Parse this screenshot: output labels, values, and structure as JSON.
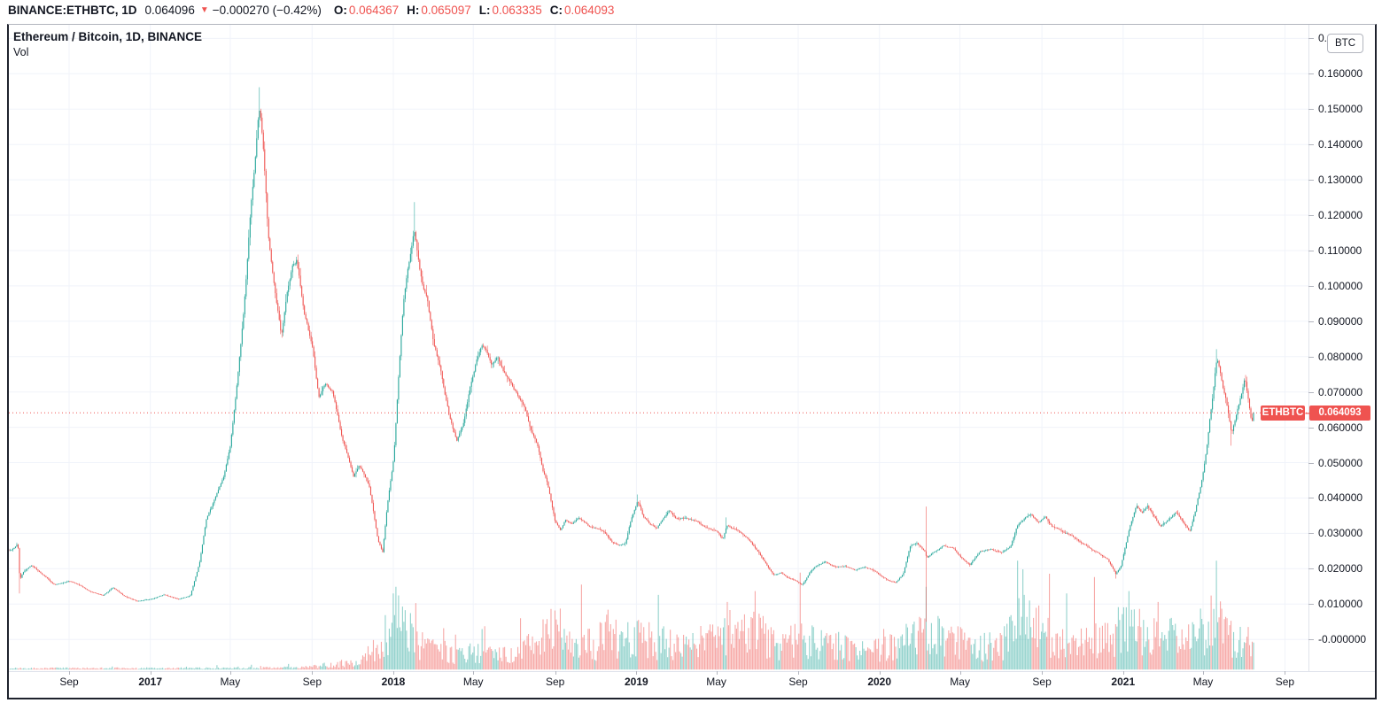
{
  "header": {
    "symbol": "BINANCE:ETHBTC, 1D",
    "last_price": "0.064096",
    "direction_icon": "▼",
    "change": "−0.000270 (−0.42%)",
    "ohlc": [
      {
        "label": "O:",
        "value": "0.064367"
      },
      {
        "label": "H:",
        "value": "0.065097"
      },
      {
        "label": "L:",
        "value": "0.063335"
      },
      {
        "label": "C:",
        "value": "0.064093"
      }
    ]
  },
  "legend": {
    "title": "Ethereum / Bitcoin, 1D, BINANCE",
    "indicator": "Vol"
  },
  "axes": {
    "currency_button": "BTC",
    "price_labels": [
      "0.170000",
      "0.160000",
      "0.150000",
      "0.140000",
      "0.130000",
      "0.120000",
      "0.110000",
      "0.100000",
      "0.090000",
      "0.080000",
      "0.070000",
      "0.060000",
      "0.050000",
      "0.040000",
      "0.030000",
      "0.020000",
      "0.010000",
      "-0.000000"
    ],
    "price_top_value": 0.17,
    "price_step": 0.01,
    "time_labels": [
      {
        "label": "Sep",
        "date": "2016-09-01",
        "bold": false
      },
      {
        "label": "2017",
        "date": "2017-01-01",
        "bold": true
      },
      {
        "label": "May",
        "date": "2017-05-01",
        "bold": false
      },
      {
        "label": "Sep",
        "date": "2017-09-01",
        "bold": false
      },
      {
        "label": "2018",
        "date": "2018-01-01",
        "bold": true
      },
      {
        "label": "May",
        "date": "2018-05-01",
        "bold": false
      },
      {
        "label": "Sep",
        "date": "2018-09-01",
        "bold": false
      },
      {
        "label": "2019",
        "date": "2019-01-01",
        "bold": true
      },
      {
        "label": "May",
        "date": "2019-05-01",
        "bold": false
      },
      {
        "label": "Sep",
        "date": "2019-09-01",
        "bold": false
      },
      {
        "label": "2020",
        "date": "2020-01-01",
        "bold": true
      },
      {
        "label": "May",
        "date": "2020-05-01",
        "bold": false
      },
      {
        "label": "Sep",
        "date": "2020-09-01",
        "bold": false
      },
      {
        "label": "2021",
        "date": "2021-01-01",
        "bold": true
      },
      {
        "label": "May",
        "date": "2021-05-01",
        "bold": false
      },
      {
        "label": "Sep",
        "date": "2021-09-01",
        "bold": false
      }
    ]
  },
  "price_line": {
    "symbol_badge": "ETHBTC",
    "dash": "–",
    "value_label": "0.064093",
    "value": 0.064093
  },
  "colors": {
    "up": "#26a69a",
    "down": "#ef5350",
    "vol_up": "rgba(38,166,154,0.5)",
    "vol_down": "rgba(239,83,80,0.5)",
    "accent_red": "#ef5350",
    "grid": "#f0f3fa",
    "text": "#131722"
  },
  "chart_data": {
    "type": "candlestick",
    "title": "Ethereum / Bitcoin, 1D, BINANCE",
    "symbol": "BINANCE:ETHBTC",
    "interval": "1D",
    "last_close": 0.064093,
    "y_axis_range": [
      -0.009,
      0.181
    ],
    "grid": true,
    "price_anchors": [
      [
        "2016-06-03",
        0.025
      ],
      [
        "2016-06-12",
        0.0258
      ],
      [
        "2016-06-16",
        0.0272
      ],
      [
        "2016-06-19",
        0.0168
      ],
      [
        "2016-06-24",
        0.019
      ],
      [
        "2016-07-06",
        0.021
      ],
      [
        "2016-07-26",
        0.0181
      ],
      [
        "2016-08-10",
        0.0156
      ],
      [
        "2016-09-01",
        0.0165
      ],
      [
        "2016-09-18",
        0.0152
      ],
      [
        "2016-10-06",
        0.0133
      ],
      [
        "2016-10-22",
        0.0124
      ],
      [
        "2016-11-06",
        0.0146
      ],
      [
        "2016-11-22",
        0.0125
      ],
      [
        "2016-12-12",
        0.0109
      ],
      [
        "2017-01-01",
        0.0114
      ],
      [
        "2017-01-22",
        0.0126
      ],
      [
        "2017-02-12",
        0.0114
      ],
      [
        "2017-03-02",
        0.0124
      ],
      [
        "2017-03-16",
        0.022
      ],
      [
        "2017-03-26",
        0.034
      ],
      [
        "2017-04-06",
        0.0385
      ],
      [
        "2017-04-21",
        0.046
      ],
      [
        "2017-05-01",
        0.055
      ],
      [
        "2017-05-10",
        0.07
      ],
      [
        "2017-05-20",
        0.09
      ],
      [
        "2017-05-26",
        0.105
      ],
      [
        "2017-06-01",
        0.122
      ],
      [
        "2017-06-07",
        0.135
      ],
      [
        "2017-06-13",
        0.15
      ],
      [
        "2017-06-16",
        0.147
      ],
      [
        "2017-06-21",
        0.134
      ],
      [
        "2017-06-27",
        0.114
      ],
      [
        "2017-07-03",
        0.105
      ],
      [
        "2017-07-09",
        0.097
      ],
      [
        "2017-07-17",
        0.086
      ],
      [
        "2017-07-26",
        0.0985
      ],
      [
        "2017-08-02",
        0.105
      ],
      [
        "2017-08-09",
        0.107
      ],
      [
        "2017-08-21",
        0.092
      ],
      [
        "2017-09-02",
        0.082
      ],
      [
        "2017-09-11",
        0.069
      ],
      [
        "2017-09-21",
        0.073
      ],
      [
        "2017-10-02",
        0.071
      ],
      [
        "2017-10-16",
        0.057
      ],
      [
        "2017-11-02",
        0.0462
      ],
      [
        "2017-11-11",
        0.0492
      ],
      [
        "2017-11-26",
        0.043
      ],
      [
        "2017-12-09",
        0.028
      ],
      [
        "2017-12-16",
        0.0246
      ],
      [
        "2017-12-23",
        0.038
      ],
      [
        "2018-01-02",
        0.052
      ],
      [
        "2018-01-10",
        0.078
      ],
      [
        "2018-01-16",
        0.095
      ],
      [
        "2018-01-22",
        0.105
      ],
      [
        "2018-01-29",
        0.112
      ],
      [
        "2018-02-01",
        0.117
      ],
      [
        "2018-02-07",
        0.108
      ],
      [
        "2018-02-13",
        0.101
      ],
      [
        "2018-02-21",
        0.096
      ],
      [
        "2018-03-02",
        0.084
      ],
      [
        "2018-03-11",
        0.078
      ],
      [
        "2018-03-19",
        0.07
      ],
      [
        "2018-03-26",
        0.063
      ],
      [
        "2018-04-06",
        0.056
      ],
      [
        "2018-04-16",
        0.06
      ],
      [
        "2018-04-25",
        0.07
      ],
      [
        "2018-05-04",
        0.078
      ],
      [
        "2018-05-14",
        0.084
      ],
      [
        "2018-05-21",
        0.082
      ],
      [
        "2018-05-29",
        0.078
      ],
      [
        "2018-06-06",
        0.08
      ],
      [
        "2018-06-16",
        0.076
      ],
      [
        "2018-06-26",
        0.073
      ],
      [
        "2018-07-06",
        0.07
      ],
      [
        "2018-07-16",
        0.066
      ],
      [
        "2018-07-26",
        0.06
      ],
      [
        "2018-08-06",
        0.055
      ],
      [
        "2018-08-14",
        0.048
      ],
      [
        "2018-08-21",
        0.044
      ],
      [
        "2018-09-01",
        0.0335
      ],
      [
        "2018-09-09",
        0.031
      ],
      [
        "2018-09-16",
        0.034
      ],
      [
        "2018-09-26",
        0.033
      ],
      [
        "2018-10-06",
        0.0345
      ],
      [
        "2018-10-21",
        0.032
      ],
      [
        "2018-11-02",
        0.0315
      ],
      [
        "2018-11-16",
        0.03
      ],
      [
        "2018-11-26",
        0.0275
      ],
      [
        "2018-12-06",
        0.0265
      ],
      [
        "2018-12-16",
        0.027
      ],
      [
        "2018-12-22",
        0.032
      ],
      [
        "2019-01-03",
        0.0392
      ],
      [
        "2019-01-11",
        0.035
      ],
      [
        "2019-01-21",
        0.0325
      ],
      [
        "2019-02-01",
        0.0315
      ],
      [
        "2019-02-09",
        0.034
      ],
      [
        "2019-02-19",
        0.0365
      ],
      [
        "2019-03-01",
        0.0345
      ],
      [
        "2019-03-16",
        0.0345
      ],
      [
        "2019-04-02",
        0.0335
      ],
      [
        "2019-04-16",
        0.0315
      ],
      [
        "2019-05-01",
        0.0305
      ],
      [
        "2019-05-11",
        0.0282
      ],
      [
        "2019-05-17",
        0.032
      ],
      [
        "2019-05-26",
        0.0315
      ],
      [
        "2019-06-06",
        0.0305
      ],
      [
        "2019-06-16",
        0.029
      ],
      [
        "2019-06-26",
        0.0265
      ],
      [
        "2019-07-06",
        0.024
      ],
      [
        "2019-07-16",
        0.021
      ],
      [
        "2019-07-26",
        0.0186
      ],
      [
        "2019-08-06",
        0.019
      ],
      [
        "2019-08-16",
        0.0175
      ],
      [
        "2019-08-29",
        0.0165
      ],
      [
        "2019-09-07",
        0.0152
      ],
      [
        "2019-09-17",
        0.0185
      ],
      [
        "2019-09-26",
        0.0205
      ],
      [
        "2019-10-11",
        0.022
      ],
      [
        "2019-10-26",
        0.0205
      ],
      [
        "2019-11-11",
        0.0205
      ],
      [
        "2019-11-26",
        0.0195
      ],
      [
        "2019-12-11",
        0.0205
      ],
      [
        "2019-12-26",
        0.0195
      ],
      [
        "2020-01-01",
        0.0185
      ],
      [
        "2020-01-16",
        0.0165
      ],
      [
        "2020-01-26",
        0.016
      ],
      [
        "2020-02-06",
        0.0185
      ],
      [
        "2020-02-16",
        0.0265
      ],
      [
        "2020-02-26",
        0.0275
      ],
      [
        "2020-03-09",
        0.025
      ],
      [
        "2020-03-12",
        0.023
      ],
      [
        "2020-03-21",
        0.0245
      ],
      [
        "2020-04-06",
        0.0265
      ],
      [
        "2020-04-21",
        0.0255
      ],
      [
        "2020-05-01",
        0.0235
      ],
      [
        "2020-05-16",
        0.021
      ],
      [
        "2020-05-31",
        0.025
      ],
      [
        "2020-06-16",
        0.0255
      ],
      [
        "2020-07-02",
        0.0245
      ],
      [
        "2020-07-16",
        0.026
      ],
      [
        "2020-07-26",
        0.032
      ],
      [
        "2020-08-06",
        0.034
      ],
      [
        "2020-08-16",
        0.0355
      ],
      [
        "2020-08-26",
        0.033
      ],
      [
        "2020-09-06",
        0.0345
      ],
      [
        "2020-09-16",
        0.032
      ],
      [
        "2020-10-02",
        0.0305
      ],
      [
        "2020-10-16",
        0.0295
      ],
      [
        "2020-11-02",
        0.027
      ],
      [
        "2020-11-16",
        0.0255
      ],
      [
        "2020-11-26",
        0.0245
      ],
      [
        "2020-12-09",
        0.0225
      ],
      [
        "2020-12-21",
        0.0185
      ],
      [
        "2020-12-29",
        0.021
      ],
      [
        "2021-01-05",
        0.027
      ],
      [
        "2021-01-11",
        0.032
      ],
      [
        "2021-01-21",
        0.038
      ],
      [
        "2021-01-29",
        0.036
      ],
      [
        "2021-02-06",
        0.038
      ],
      [
        "2021-02-16",
        0.035
      ],
      [
        "2021-02-26",
        0.032
      ],
      [
        "2021-03-11",
        0.034
      ],
      [
        "2021-03-21",
        0.036
      ],
      [
        "2021-04-02",
        0.033
      ],
      [
        "2021-04-11",
        0.0305
      ],
      [
        "2021-04-19",
        0.036
      ],
      [
        "2021-04-26",
        0.042
      ],
      [
        "2021-05-02",
        0.048
      ],
      [
        "2021-05-07",
        0.055
      ],
      [
        "2021-05-11",
        0.062
      ],
      [
        "2021-05-15",
        0.068
      ],
      [
        "2021-05-19",
        0.075
      ],
      [
        "2021-05-22",
        0.0795
      ],
      [
        "2021-05-26",
        0.077
      ],
      [
        "2021-05-30",
        0.072
      ],
      [
        "2021-06-04",
        0.068
      ],
      [
        "2021-06-09",
        0.062
      ],
      [
        "2021-06-13",
        0.0572
      ],
      [
        "2021-06-18",
        0.061
      ],
      [
        "2021-06-23",
        0.065
      ],
      [
        "2021-06-28",
        0.069
      ],
      [
        "2021-07-03",
        0.0735
      ],
      [
        "2021-07-08",
        0.068
      ],
      [
        "2021-07-13",
        0.0615
      ],
      [
        "2021-07-16",
        0.0641
      ]
    ],
    "wick_events": [
      [
        "2016-06-18",
        null,
        0.013
      ],
      [
        "2017-06-13",
        0.1562,
        null
      ],
      [
        "2018-02-01",
        0.1237,
        null
      ],
      [
        "2019-01-03",
        0.041,
        null
      ],
      [
        "2019-05-16",
        0.0345,
        null
      ],
      [
        "2020-03-12",
        0.0376,
        0.005
      ],
      [
        "2020-12-21",
        null,
        0.0172
      ],
      [
        "2021-05-22",
        0.0821,
        null
      ],
      [
        "2021-06-13",
        null,
        0.0548
      ],
      [
        "2021-07-03",
        0.0748,
        null
      ]
    ],
    "volume_rel_anchors": [
      [
        "2016-06-03",
        0.012
      ],
      [
        "2017-06-01",
        0.015
      ],
      [
        "2017-08-01",
        0.02
      ],
      [
        "2017-09-15",
        0.04
      ],
      [
        "2017-10-15",
        0.06
      ],
      [
        "2017-11-15",
        0.1
      ],
      [
        "2017-12-10",
        0.22
      ],
      [
        "2017-12-22",
        0.38
      ],
      [
        "2018-01-05",
        0.55
      ],
      [
        "2018-01-18",
        0.42
      ],
      [
        "2018-02-03",
        0.3
      ],
      [
        "2018-02-20",
        0.26
      ],
      [
        "2018-03-10",
        0.2
      ],
      [
        "2018-04-05",
        0.16
      ],
      [
        "2018-05-01",
        0.18
      ],
      [
        "2018-06-01",
        0.14
      ],
      [
        "2018-07-01",
        0.14
      ],
      [
        "2018-08-01",
        0.26
      ],
      [
        "2018-08-18",
        0.36
      ],
      [
        "2018-09-06",
        0.4
      ],
      [
        "2018-09-22",
        0.3
      ],
      [
        "2018-10-12",
        0.26
      ],
      [
        "2018-11-02",
        0.24
      ],
      [
        "2018-11-20",
        0.36
      ],
      [
        "2018-12-12",
        0.28
      ],
      [
        "2019-01-10",
        0.32
      ],
      [
        "2019-02-02",
        0.26
      ],
      [
        "2019-03-02",
        0.24
      ],
      [
        "2019-04-02",
        0.26
      ],
      [
        "2019-05-02",
        0.3
      ],
      [
        "2019-05-18",
        0.42
      ],
      [
        "2019-06-02",
        0.32
      ],
      [
        "2019-06-28",
        0.38
      ],
      [
        "2019-08-02",
        0.26
      ],
      [
        "2019-09-02",
        0.3
      ],
      [
        "2019-10-02",
        0.26
      ],
      [
        "2019-11-02",
        0.24
      ],
      [
        "2019-12-02",
        0.22
      ],
      [
        "2020-01-02",
        0.22
      ],
      [
        "2020-02-02",
        0.28
      ],
      [
        "2020-03-02",
        0.36
      ],
      [
        "2020-03-14",
        0.44
      ],
      [
        "2020-04-02",
        0.3
      ],
      [
        "2020-05-02",
        0.26
      ],
      [
        "2020-06-02",
        0.24
      ],
      [
        "2020-07-02",
        0.26
      ],
      [
        "2020-07-28",
        0.44
      ],
      [
        "2020-08-06",
        0.46
      ],
      [
        "2020-09-02",
        0.4
      ],
      [
        "2020-10-02",
        0.3
      ],
      [
        "2020-11-02",
        0.26
      ],
      [
        "2020-12-02",
        0.3
      ],
      [
        "2021-01-06",
        0.44
      ],
      [
        "2021-01-22",
        0.42
      ],
      [
        "2021-02-02",
        0.38
      ],
      [
        "2021-03-02",
        0.34
      ],
      [
        "2021-04-02",
        0.3
      ],
      [
        "2021-05-02",
        0.4
      ],
      [
        "2021-05-21",
        0.48
      ],
      [
        "2021-06-02",
        0.36
      ],
      [
        "2021-06-23",
        0.32
      ],
      [
        "2021-07-16",
        0.26
      ]
    ],
    "volume_spikes": [
      [
        "2017-12-20",
        0.5,
        "up"
      ],
      [
        "2018-01-05",
        0.76,
        "up"
      ],
      [
        "2018-10-11",
        0.78,
        "down"
      ],
      [
        "2018-11-19",
        0.55,
        "down"
      ],
      [
        "2019-05-17",
        0.62,
        "down"
      ],
      [
        "2019-06-28",
        0.72,
        "down"
      ],
      [
        "2020-03-12",
        0.76,
        "up"
      ],
      [
        "2020-07-27",
        1.0,
        "up"
      ],
      [
        "2020-08-04",
        0.92,
        "up"
      ],
      [
        "2020-09-12",
        0.88,
        "down"
      ],
      [
        "2020-11-18",
        0.85,
        "down"
      ],
      [
        "2021-01-10",
        0.72,
        "up"
      ],
      [
        "2021-02-23",
        0.62,
        "down"
      ],
      [
        "2021-05-13",
        0.68,
        "down"
      ]
    ]
  }
}
